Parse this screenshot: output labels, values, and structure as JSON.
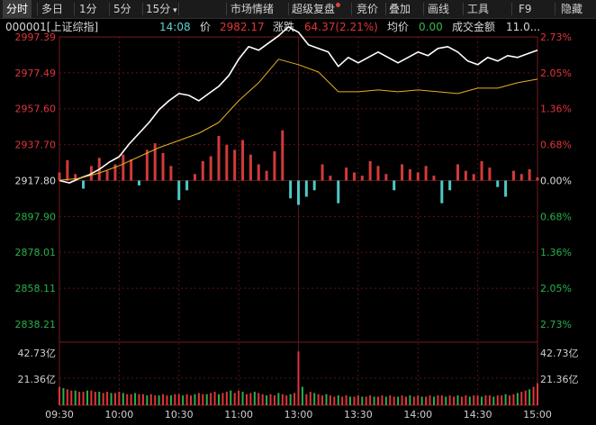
{
  "toolbar": {
    "items": [
      {
        "label": "分时",
        "active": true
      },
      {
        "label": "多日"
      },
      {
        "label": "1分"
      },
      {
        "label": "5分"
      },
      {
        "label": "15分"
      },
      {
        "label": "市场情绪"
      },
      {
        "label": "超级复盘"
      },
      {
        "label": "竞价"
      },
      {
        "label": "叠加"
      },
      {
        "label": "画线"
      },
      {
        "label": "工具"
      },
      {
        "label": "F9"
      },
      {
        "label": "隐藏"
      }
    ]
  },
  "info": {
    "code_name": "000001[上证综指]",
    "time": "14:08",
    "price_label": "价",
    "price": "2982.17",
    "change_label": "涨跌",
    "change": "64.37(2.21%)",
    "avg_label": "均价",
    "avg": "0.00",
    "turnover_label": "成交金额",
    "turnover": "11.0..."
  },
  "colors": {
    "up": "#e0353b",
    "down": "#29b04a",
    "flat": "#dddddd",
    "price": "#ffffff",
    "avg": "#e8b020",
    "axis_line": "#7a1a1a",
    "grid": "#5a1515"
  },
  "chart_data": {
    "type": "line",
    "prev_close": 2917.8,
    "left_ticks": [
      "2997.39",
      "2977.49",
      "2957.60",
      "2937.70",
      "2917.80",
      "2897.90",
      "2878.01",
      "2858.11",
      "2838.21"
    ],
    "right_ticks": [
      "2.73%",
      "2.05%",
      "1.36%",
      "0.68%",
      "0.00%",
      "0.68%",
      "1.36%",
      "2.05%",
      "2.73%"
    ],
    "x_ticks": [
      "09:30",
      "10:00",
      "10:30",
      "11:00",
      "13:00",
      "13:30",
      "14:00",
      "14:30",
      "15:00"
    ],
    "volume_ticks": [
      "42.73亿",
      "21.36亿"
    ],
    "volume_max": 42.73,
    "series": [
      {
        "name": "价",
        "points": [
          [
            0,
            2917.8
          ],
          [
            5,
            2916.5
          ],
          [
            10,
            2919
          ],
          [
            15,
            2921
          ],
          [
            20,
            2924
          ],
          [
            25,
            2928
          ],
          [
            30,
            2931
          ],
          [
            35,
            2938
          ],
          [
            40,
            2944
          ],
          [
            45,
            2950
          ],
          [
            50,
            2957
          ],
          [
            55,
            2962
          ],
          [
            60,
            2966
          ],
          [
            65,
            2965
          ],
          [
            70,
            2962
          ],
          [
            75,
            2966
          ],
          [
            80,
            2970
          ],
          [
            85,
            2976
          ],
          [
            90,
            2985
          ],
          [
            95,
            2992
          ],
          [
            100,
            2990
          ],
          [
            105,
            2994
          ],
          [
            110,
            2998
          ],
          [
            115,
            3003
          ],
          [
            120,
            3000
          ],
          [
            125,
            2993
          ],
          [
            130,
            2991
          ],
          [
            135,
            2989
          ],
          [
            140,
            2981
          ],
          [
            145,
            2986
          ],
          [
            150,
            2983
          ],
          [
            155,
            2986
          ],
          [
            160,
            2989
          ],
          [
            165,
            2986
          ],
          [
            170,
            2983
          ],
          [
            175,
            2986
          ],
          [
            180,
            2989
          ],
          [
            185,
            2987
          ],
          [
            190,
            2991
          ],
          [
            195,
            2992
          ],
          [
            200,
            2989
          ],
          [
            205,
            2984
          ],
          [
            210,
            2982
          ],
          [
            215,
            2986
          ],
          [
            220,
            2984
          ],
          [
            225,
            2987
          ],
          [
            230,
            2986
          ],
          [
            235,
            2988
          ],
          [
            240,
            2990
          ]
        ]
      },
      {
        "name": "均价",
        "points": [
          [
            0,
            2918
          ],
          [
            10,
            2919
          ],
          [
            20,
            2922
          ],
          [
            30,
            2926
          ],
          [
            40,
            2931
          ],
          [
            50,
            2936
          ],
          [
            60,
            2940
          ],
          [
            70,
            2944
          ],
          [
            80,
            2950
          ],
          [
            90,
            2962
          ],
          [
            100,
            2972
          ],
          [
            110,
            2985
          ],
          [
            120,
            2982
          ],
          [
            130,
            2978
          ],
          [
            140,
            2967
          ],
          [
            150,
            2967
          ],
          [
            160,
            2968
          ],
          [
            170,
            2967
          ],
          [
            180,
            2968
          ],
          [
            190,
            2967
          ],
          [
            200,
            2966
          ],
          [
            210,
            2969
          ],
          [
            220,
            2969
          ],
          [
            230,
            2972
          ],
          [
            240,
            2974
          ]
        ]
      }
    ],
    "strength": [
      [
        0,
        10
      ],
      [
        4,
        25
      ],
      [
        8,
        8
      ],
      [
        12,
        -10
      ],
      [
        16,
        18
      ],
      [
        20,
        28
      ],
      [
        24,
        12
      ],
      [
        28,
        20
      ],
      [
        32,
        32
      ],
      [
        36,
        26
      ],
      [
        40,
        -6
      ],
      [
        44,
        38
      ],
      [
        48,
        46
      ],
      [
        52,
        34
      ],
      [
        56,
        18
      ],
      [
        60,
        -24
      ],
      [
        64,
        -12
      ],
      [
        68,
        8
      ],
      [
        72,
        24
      ],
      [
        76,
        30
      ],
      [
        80,
        55
      ],
      [
        84,
        44
      ],
      [
        88,
        38
      ],
      [
        92,
        50
      ],
      [
        96,
        32
      ],
      [
        100,
        20
      ],
      [
        104,
        12
      ],
      [
        108,
        36
      ],
      [
        112,
        62
      ],
      [
        116,
        -22
      ],
      [
        120,
        -30
      ],
      [
        124,
        -20
      ],
      [
        128,
        -12
      ],
      [
        132,
        20
      ],
      [
        136,
        6
      ],
      [
        140,
        -28
      ],
      [
        144,
        16
      ],
      [
        148,
        10
      ],
      [
        152,
        6
      ],
      [
        156,
        24
      ],
      [
        160,
        18
      ],
      [
        164,
        8
      ],
      [
        168,
        -12
      ],
      [
        172,
        20
      ],
      [
        176,
        14
      ],
      [
        180,
        10
      ],
      [
        184,
        18
      ],
      [
        188,
        6
      ],
      [
        192,
        -28
      ],
      [
        196,
        -12
      ],
      [
        200,
        20
      ],
      [
        204,
        12
      ],
      [
        208,
        8
      ],
      [
        212,
        24
      ],
      [
        216,
        16
      ],
      [
        220,
        -8
      ],
      [
        224,
        -20
      ],
      [
        228,
        12
      ],
      [
        232,
        8
      ],
      [
        236,
        14
      ],
      [
        240,
        4
      ]
    ],
    "volume": [
      [
        0,
        15
      ],
      [
        2,
        14
      ],
      [
        4,
        13
      ],
      [
        6,
        12
      ],
      [
        8,
        12
      ],
      [
        10,
        11
      ],
      [
        12,
        11
      ],
      [
        14,
        12
      ],
      [
        16,
        12
      ],
      [
        18,
        11
      ],
      [
        20,
        11
      ],
      [
        22,
        10
      ],
      [
        24,
        11
      ],
      [
        26,
        10
      ],
      [
        28,
        10
      ],
      [
        30,
        11
      ],
      [
        32,
        10
      ],
      [
        34,
        9
      ],
      [
        36,
        9
      ],
      [
        38,
        10
      ],
      [
        40,
        9
      ],
      [
        42,
        9
      ],
      [
        44,
        8
      ],
      [
        46,
        9
      ],
      [
        48,
        8
      ],
      [
        50,
        8
      ],
      [
        52,
        9
      ],
      [
        54,
        8
      ],
      [
        56,
        8
      ],
      [
        58,
        9
      ],
      [
        60,
        9
      ],
      [
        62,
        8
      ],
      [
        64,
        9
      ],
      [
        66,
        8
      ],
      [
        68,
        9
      ],
      [
        70,
        10
      ],
      [
        72,
        9
      ],
      [
        74,
        9
      ],
      [
        76,
        10
      ],
      [
        78,
        11
      ],
      [
        80,
        9
      ],
      [
        82,
        10
      ],
      [
        84,
        11
      ],
      [
        86,
        12
      ],
      [
        88,
        10
      ],
      [
        90,
        12
      ],
      [
        92,
        11
      ],
      [
        94,
        9
      ],
      [
        96,
        10
      ],
      [
        98,
        11
      ],
      [
        100,
        10
      ],
      [
        102,
        9
      ],
      [
        104,
        8
      ],
      [
        106,
        9
      ],
      [
        108,
        8
      ],
      [
        110,
        10
      ],
      [
        112,
        9
      ],
      [
        114,
        8
      ],
      [
        116,
        9
      ],
      [
        118,
        10
      ],
      [
        120,
        44
      ],
      [
        122,
        15
      ],
      [
        124,
        9
      ],
      [
        126,
        11
      ],
      [
        128,
        10
      ],
      [
        130,
        9
      ],
      [
        132,
        8
      ],
      [
        134,
        9
      ],
      [
        136,
        8
      ],
      [
        138,
        7
      ],
      [
        140,
        8
      ],
      [
        142,
        7
      ],
      [
        144,
        8
      ],
      [
        146,
        7
      ],
      [
        148,
        7
      ],
      [
        150,
        8
      ],
      [
        152,
        7
      ],
      [
        154,
        7
      ],
      [
        156,
        8
      ],
      [
        158,
        7
      ],
      [
        160,
        7
      ],
      [
        162,
        8
      ],
      [
        164,
        7
      ],
      [
        166,
        8
      ],
      [
        168,
        7
      ],
      [
        170,
        7
      ],
      [
        172,
        8
      ],
      [
        174,
        7
      ],
      [
        176,
        8
      ],
      [
        178,
        7
      ],
      [
        180,
        8
      ],
      [
        182,
        7
      ],
      [
        184,
        7
      ],
      [
        186,
        8
      ],
      [
        188,
        7
      ],
      [
        190,
        8
      ],
      [
        192,
        8
      ],
      [
        194,
        7
      ],
      [
        196,
        8
      ],
      [
        198,
        7
      ],
      [
        200,
        8
      ],
      [
        202,
        7
      ],
      [
        204,
        8
      ],
      [
        206,
        7
      ],
      [
        208,
        8
      ],
      [
        210,
        8
      ],
      [
        212,
        7
      ],
      [
        214,
        8
      ],
      [
        216,
        8
      ],
      [
        218,
        7
      ],
      [
        220,
        8
      ],
      [
        222,
        8
      ],
      [
        224,
        9
      ],
      [
        226,
        8
      ],
      [
        228,
        9
      ],
      [
        230,
        10
      ],
      [
        232,
        11
      ],
      [
        234,
        12
      ],
      [
        236,
        13
      ],
      [
        238,
        15
      ],
      [
        240,
        18
      ]
    ]
  }
}
